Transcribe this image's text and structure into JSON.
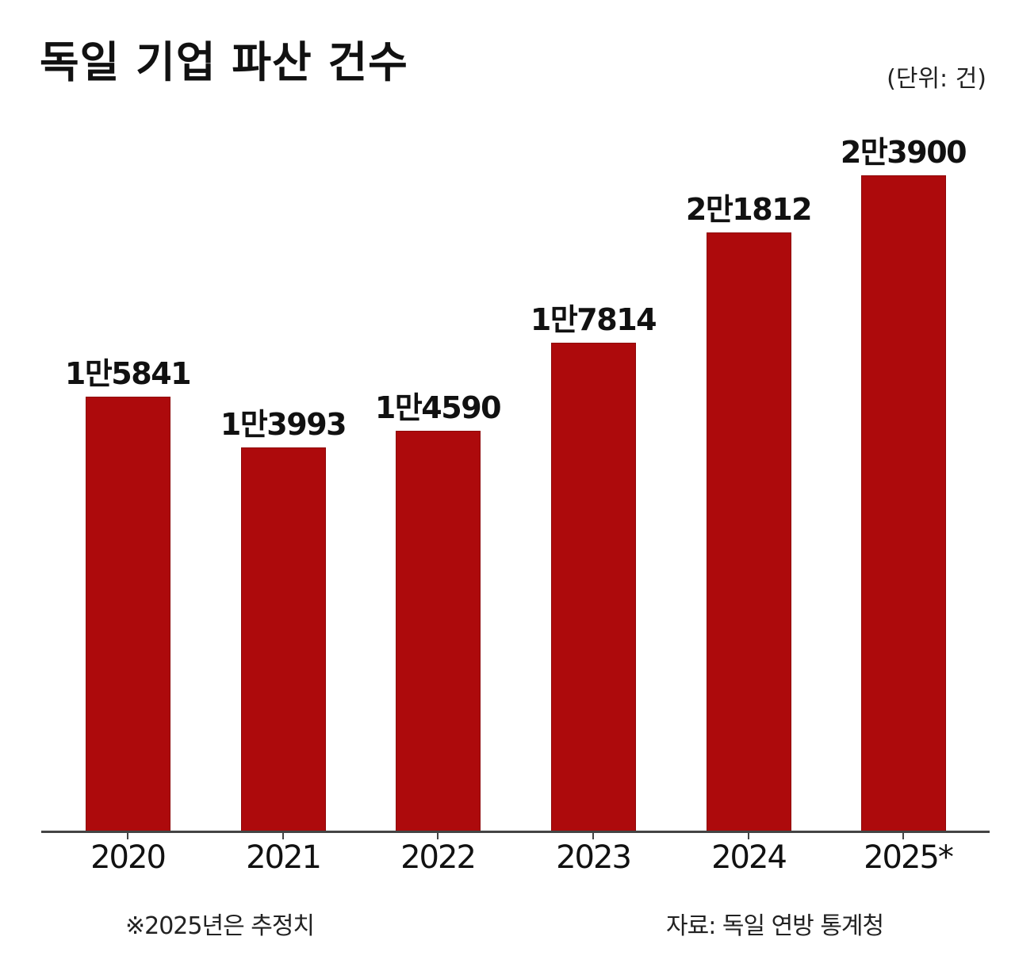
{
  "header": {
    "title": "독일 기업 파산 건수",
    "unit": "(단위: 건)"
  },
  "footer": {
    "note": "※2025년은 추정치",
    "source": "자료: 독일 연방 통계청"
  },
  "colors": {
    "bar": "#ad0a0c",
    "axis": "#444444",
    "text": "#111111"
  },
  "bars": [
    {
      "year": "2020",
      "value": 15841,
      "label": "1만5841"
    },
    {
      "year": "2021",
      "value": 13993,
      "label": "1만3993"
    },
    {
      "year": "2022",
      "value": 14590,
      "label": "1만4590"
    },
    {
      "year": "2023",
      "value": 17814,
      "label": "1만7814"
    },
    {
      "year": "2024",
      "value": 21812,
      "label": "2만1812"
    },
    {
      "year": "2025*",
      "value": 23900,
      "label": "2만3900"
    }
  ],
  "chart_data": {
    "type": "bar",
    "title": "독일 기업 파산 건수",
    "subtitle": "(단위: 건)",
    "categories": [
      "2020",
      "2021",
      "2022",
      "2023",
      "2024",
      "2025*"
    ],
    "values": [
      15841,
      13993,
      14590,
      17814,
      21812,
      23900
    ],
    "data_labels": [
      "1만5841",
      "1만3993",
      "1만4590",
      "1만7814",
      "2만1812",
      "2만3900"
    ],
    "xlabel": "",
    "ylabel": "",
    "ylim": [
      0,
      25000
    ],
    "grid": false,
    "legend": null,
    "annotations": [
      "※2025년은 추정치",
      "자료: 독일 연방 통계청"
    ]
  }
}
